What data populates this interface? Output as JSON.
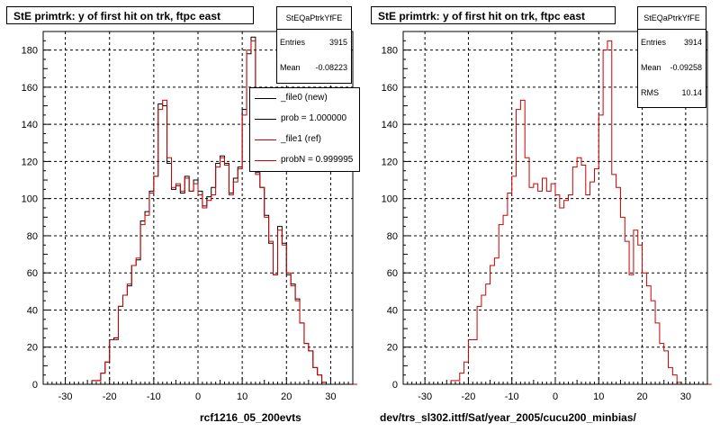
{
  "colors": {
    "new": "#000000",
    "ref": "#cc0000",
    "grid": "#000000"
  },
  "panels": [
    {
      "title": "StE primtrk: y of first hit on trk, ftpc east",
      "stats": {
        "name": "StEQaPtrkYfFE",
        "rows": [
          {
            "key": "Entries",
            "value": "3915"
          },
          {
            "key": "Mean",
            "value": "-0.08223"
          }
        ]
      },
      "legend": [
        {
          "label": "_file0 (new)",
          "color": "#000000"
        },
        {
          "label": "prob = 1.000000",
          "color": "#000000"
        },
        {
          "label": "_file1 (ref)",
          "color": "#cc0000"
        },
        {
          "label": "probN = 0.999995",
          "color": "#cc0000"
        }
      ],
      "footer": "rcf1216_05_200evts"
    },
    {
      "title": "StE primtrk: y of first hit on trk, ftpc east",
      "stats": {
        "name": "StEQaPtrkYfFE",
        "rows": [
          {
            "key": "Entries",
            "value": "3914"
          },
          {
            "key": "Mean",
            "value": "-0.09258"
          },
          {
            "key": "RMS",
            "value": "10.14"
          }
        ]
      },
      "legend": [],
      "footer": "dev/trs_sl302.ittf/Sat/year_2005/cucu200_minbias/"
    }
  ],
  "chart_data": [
    {
      "type": "histogram",
      "title": "StE primtrk: y of first hit on trk, ftpc east",
      "xlim": [
        -35,
        35
      ],
      "ylim": [
        0,
        190
      ],
      "bin_start": -34,
      "bin_width": 1,
      "xticks": [
        -30,
        -20,
        -10,
        0,
        10,
        20,
        30
      ],
      "yticks": [
        0,
        20,
        40,
        60,
        80,
        100,
        120,
        140,
        160,
        180
      ],
      "grid": true,
      "legend_position": "top-right",
      "series": [
        {
          "name": "_file0 (new)",
          "color": "#000000",
          "values": [
            0,
            0,
            0,
            0,
            0,
            0,
            0,
            0,
            0,
            0,
            2,
            2,
            6,
            12,
            24,
            25,
            42,
            48,
            53,
            64,
            67,
            88,
            93,
            104,
            112,
            151,
            150,
            119,
            105,
            107,
            103,
            112,
            104,
            110,
            104,
            96,
            101,
            106,
            119,
            123,
            119,
            103,
            111,
            117,
            148,
            178,
            187,
            114,
            106,
            91,
            76,
            59,
            85,
            76,
            59,
            54,
            46,
            33,
            22,
            18,
            9,
            5,
            1,
            0,
            0,
            0,
            0,
            0,
            0,
            0
          ]
        },
        {
          "name": "_file1 (ref)",
          "color": "#cc0000",
          "values": [
            0,
            0,
            0,
            0,
            0,
            0,
            0,
            0,
            0,
            0,
            2,
            2,
            6,
            12,
            24,
            24,
            42,
            48,
            54,
            64,
            68,
            86,
            91,
            103,
            112,
            148,
            153,
            122,
            106,
            108,
            104,
            111,
            104,
            108,
            102,
            95,
            99,
            102,
            117,
            122,
            118,
            102,
            109,
            116,
            145,
            180,
            185,
            113,
            106,
            90,
            77,
            59,
            83,
            75,
            60,
            53,
            45,
            33,
            22,
            18,
            9,
            5,
            1,
            0,
            0,
            0,
            0,
            0,
            0,
            0
          ]
        }
      ]
    },
    {
      "type": "histogram",
      "title": "StE primtrk: y of first hit on trk, ftpc east",
      "xlim": [
        -35,
        35
      ],
      "ylim": [
        0,
        190
      ],
      "bin_start": -34,
      "bin_width": 1,
      "xticks": [
        -30,
        -20,
        -10,
        0,
        10,
        20,
        30
      ],
      "yticks": [
        0,
        20,
        40,
        60,
        80,
        100,
        120,
        140,
        160,
        180
      ],
      "grid": true,
      "series": [
        {
          "name": "",
          "color": "#cc0000",
          "values": [
            0,
            0,
            0,
            0,
            0,
            0,
            0,
            0,
            0,
            0,
            2,
            2,
            6,
            12,
            24,
            24,
            42,
            48,
            54,
            64,
            68,
            86,
            91,
            103,
            112,
            148,
            153,
            122,
            106,
            108,
            104,
            111,
            104,
            108,
            102,
            95,
            99,
            102,
            117,
            122,
            118,
            102,
            109,
            116,
            145,
            180,
            185,
            113,
            106,
            90,
            77,
            59,
            83,
            75,
            60,
            53,
            45,
            33,
            22,
            18,
            9,
            5,
            1,
            0,
            0,
            0,
            0,
            0,
            0,
            0
          ]
        }
      ]
    }
  ]
}
